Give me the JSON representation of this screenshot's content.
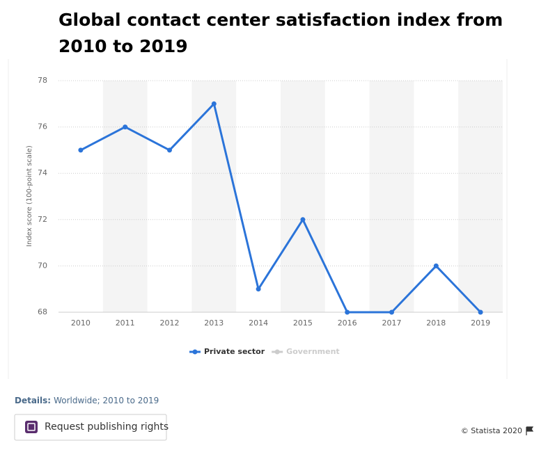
{
  "chart_data": {
    "type": "line",
    "title": "Global contact center satisfaction index from 2010 to 2019",
    "y_label": "Index score (100-point scale)",
    "categories": [
      "2010",
      "2011",
      "2012",
      "2013",
      "2014",
      "2015",
      "2016",
      "2017",
      "2018",
      "2019"
    ],
    "series": [
      {
        "name": "Private sector",
        "color": "#2b74d9",
        "values": [
          75,
          76,
          75,
          77,
          69,
          72,
          68,
          68,
          70,
          68
        ]
      },
      {
        "name": "Government",
        "color": "#cccccc",
        "values": [
          null,
          null,
          null,
          null,
          null,
          null,
          null,
          null,
          null,
          null
        ]
      }
    ],
    "ylim": [
      68,
      78
    ],
    "yticks": [
      68,
      70,
      72,
      74,
      76,
      78
    ],
    "grid": true,
    "legend": "bottom"
  },
  "details_label": "Details:",
  "details": "Worldwide; 2010 to 2019",
  "button": "Request publishing rights",
  "copyright": "© Statista 2020"
}
